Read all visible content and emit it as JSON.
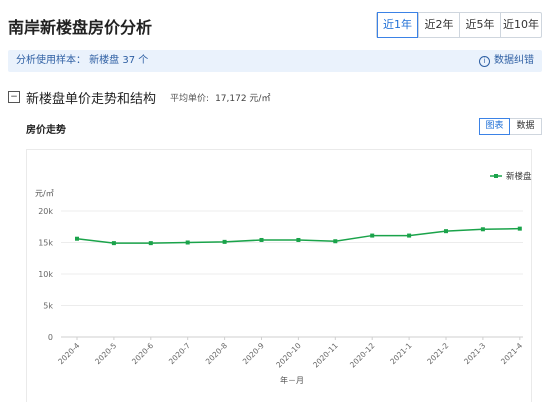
{
  "header": {
    "title": "南岸新楼盘房价分析",
    "ranges": [
      {
        "label": "近1年",
        "active": true
      },
      {
        "label": "近2年",
        "active": false
      },
      {
        "label": "近5年",
        "active": false
      },
      {
        "label": "近10年",
        "active": false
      }
    ]
  },
  "info_bar": {
    "sample_text": "分析使用样本： 新楼盘 37 个",
    "feedback_label": "数据纠错",
    "feedback_icon": "info-icon"
  },
  "section": {
    "collapse_symbol": "−",
    "title": "新楼盘单价走势和结构",
    "avg_label": "平均单价:",
    "avg_value": "17,172 元/㎡"
  },
  "trend": {
    "title": "房价走势",
    "views": [
      {
        "label": "图表",
        "active": true
      },
      {
        "label": "数据",
        "active": false
      }
    ]
  },
  "colors": {
    "accent": "#1f6fd6",
    "series": "#1aa34a"
  },
  "chart_data": {
    "type": "line",
    "x": [
      "2020-4",
      "2020-5",
      "2020-6",
      "2020-7",
      "2020-8",
      "2020-9",
      "2020-10",
      "2020-11",
      "2020-12",
      "2021-1",
      "2021-2",
      "2021-3",
      "2021-4"
    ],
    "series": [
      {
        "name": "新楼盘",
        "values": [
          15600,
          14900,
          14900,
          15000,
          15100,
          15400,
          15400,
          15200,
          16100,
          16100,
          16800,
          17100,
          17200
        ]
      }
    ],
    "ylabel": "元/㎡",
    "xlabel": "年－月",
    "yticks": [
      "0",
      "5k",
      "10k",
      "15k",
      "20k"
    ],
    "ylim": [
      0,
      20000
    ],
    "grid": true,
    "legend": "top-right"
  }
}
